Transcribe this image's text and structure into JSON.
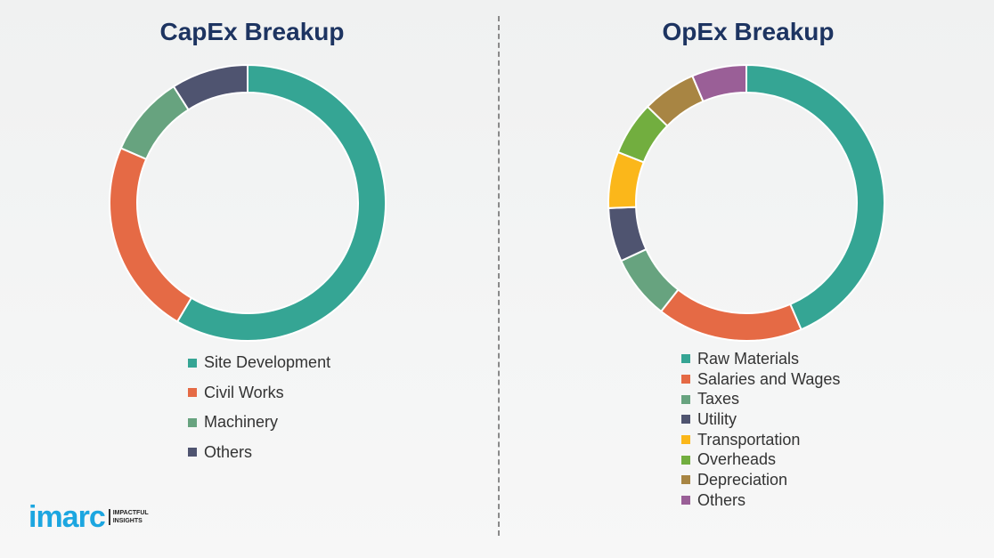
{
  "chart_data": [
    {
      "type": "pie",
      "donut": true,
      "title": "CapEx Breakup",
      "categories": [
        "Site Development",
        "Civil Works",
        "Machinery",
        "Others"
      ],
      "values": [
        58.5,
        23,
        9.5,
        9
      ],
      "colors": [
        "#35a594",
        "#e56a45",
        "#67a37f",
        "#4f5470"
      ],
      "legend": "bottom"
    },
    {
      "type": "pie",
      "donut": true,
      "title": "OpEx Breakup",
      "categories": [
        "Raw Materials",
        "Salaries and Wages",
        "Taxes",
        "Utility",
        "Transportation",
        "Overheads",
        "Depreciation",
        "Others"
      ],
      "values": [
        43.5,
        17.1,
        7.5,
        6.3,
        6.6,
        6.3,
        6.3,
        6.4
      ],
      "colors": [
        "#35a594",
        "#e56a45",
        "#67a37f",
        "#4f5470",
        "#fbb71a",
        "#72ae3f",
        "#a88543",
        "#9a5f97"
      ],
      "legend": "bottom"
    }
  ],
  "logo": {
    "word": "imarc",
    "tagline_1": "IMPACTFUL",
    "tagline_2": "INSIGHTS",
    "color": "#1ca6e0"
  }
}
